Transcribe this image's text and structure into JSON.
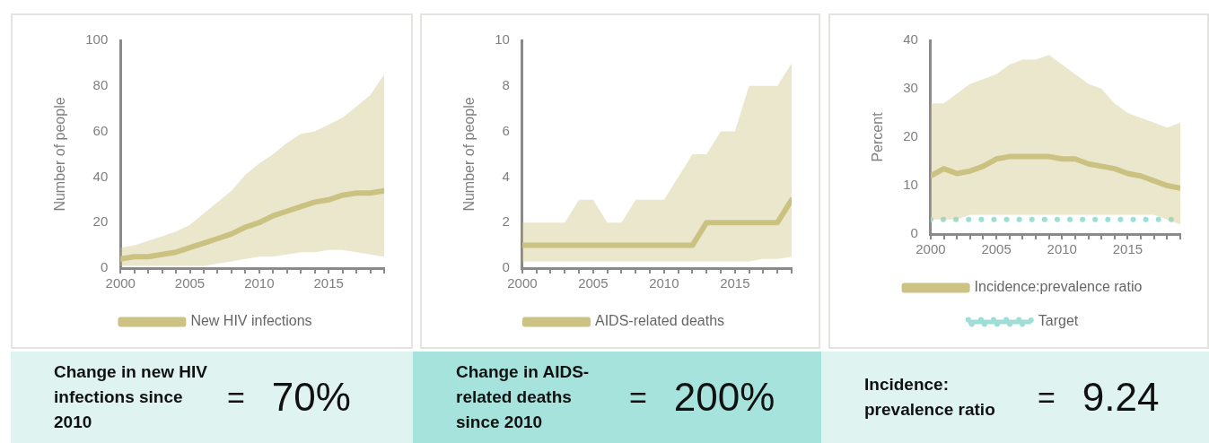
{
  "chart_data": [
    {
      "type": "line",
      "ylabel": "Number of people",
      "x": [
        2000,
        2001,
        2002,
        2003,
        2004,
        2005,
        2006,
        2007,
        2008,
        2009,
        2010,
        2011,
        2012,
        2013,
        2014,
        2015,
        2016,
        2017,
        2018,
        2019
      ],
      "xlim": [
        2000,
        2019
      ],
      "xticks": [
        2000,
        {
          "value": 2001,
          "label": null
        },
        {
          "value": 2002,
          "label": null
        },
        {
          "value": 2003,
          "label": null
        },
        {
          "value": 2004,
          "label": null
        },
        2005,
        {
          "value": 2006,
          "label": null
        },
        {
          "value": 2007,
          "label": null
        },
        {
          "value": 2008,
          "label": null
        },
        {
          "value": 2009,
          "label": null
        },
        2010,
        {
          "value": 2011,
          "label": null
        },
        {
          "value": 2012,
          "label": null
        },
        {
          "value": 2013,
          "label": null
        },
        {
          "value": 2014,
          "label": null
        },
        2015,
        {
          "value": 2016,
          "label": null
        },
        {
          "value": 2017,
          "label": null
        },
        {
          "value": 2018,
          "label": null
        },
        {
          "value": 2019,
          "label": null
        }
      ],
      "ylim": [
        0,
        100
      ],
      "yticks": [
        0,
        20,
        40,
        60,
        80,
        100
      ],
      "grid": false,
      "legend": "bottom",
      "marker": "none",
      "line_style": "solid",
      "series": [
        {
          "name": "New HIV infections",
          "color": "#cbc283",
          "values": [
            4,
            5,
            5,
            6,
            7,
            9,
            11,
            13,
            15,
            18,
            20,
            23,
            25,
            27,
            29,
            30,
            32,
            33,
            33,
            34
          ],
          "lower": [
            1,
            1,
            1,
            1,
            1,
            1,
            1,
            2,
            3,
            4,
            5,
            5,
            6,
            7,
            7,
            8,
            8,
            7,
            6,
            5
          ],
          "upper": [
            9,
            10,
            12,
            14,
            16,
            19,
            24,
            29,
            34,
            41,
            46,
            50,
            55,
            59,
            60,
            63,
            66,
            71,
            76,
            85
          ]
        }
      ]
    },
    {
      "type": "line",
      "ylabel": "Number of people",
      "x": [
        2000,
        2001,
        2002,
        2003,
        2004,
        2005,
        2006,
        2007,
        2008,
        2009,
        2010,
        2011,
        2012,
        2013,
        2014,
        2015,
        2016,
        2017,
        2018,
        2019
      ],
      "xlim": [
        2000,
        2019
      ],
      "xticks": [
        2000,
        {
          "value": 2001,
          "label": null
        },
        {
          "value": 2002,
          "label": null
        },
        {
          "value": 2003,
          "label": null
        },
        {
          "value": 2004,
          "label": null
        },
        2005,
        {
          "value": 2006,
          "label": null
        },
        {
          "value": 2007,
          "label": null
        },
        {
          "value": 2008,
          "label": null
        },
        {
          "value": 2009,
          "label": null
        },
        2010,
        {
          "value": 2011,
          "label": null
        },
        {
          "value": 2012,
          "label": null
        },
        {
          "value": 2013,
          "label": null
        },
        {
          "value": 2014,
          "label": null
        },
        2015,
        {
          "value": 2016,
          "label": null
        },
        {
          "value": 2017,
          "label": null
        },
        {
          "value": 2018,
          "label": null
        },
        {
          "value": 2019,
          "label": null
        }
      ],
      "ylim": [
        0,
        10
      ],
      "yticks": [
        0,
        2,
        4,
        6,
        8,
        10
      ],
      "grid": false,
      "legend": "bottom",
      "marker": "none",
      "line_style": "solid",
      "series": [
        {
          "name": "AIDS-related deaths",
          "color": "#cbc283",
          "values": [
            1,
            1,
            1,
            1,
            1,
            1,
            1,
            1,
            1,
            1,
            1,
            1,
            1,
            2,
            2,
            2,
            2,
            2,
            2,
            3
          ],
          "lower": [
            0.3,
            0.3,
            0.3,
            0.3,
            0.3,
            0.3,
            0.3,
            0.3,
            0.3,
            0.3,
            0.3,
            0.3,
            0.3,
            0.3,
            0.3,
            0.3,
            0.3,
            0.4,
            0.4,
            0.5
          ],
          "upper": [
            2,
            2,
            2,
            2,
            3,
            3,
            2,
            2,
            3,
            3,
            3,
            4,
            5,
            5,
            6,
            6,
            8,
            8,
            8,
            9
          ]
        }
      ]
    },
    {
      "type": "line",
      "ylabel": "Percent",
      "x": [
        2000,
        2001,
        2002,
        2003,
        2004,
        2005,
        2006,
        2007,
        2008,
        2009,
        2010,
        2011,
        2012,
        2013,
        2014,
        2015,
        2016,
        2017,
        2018,
        2019
      ],
      "xlim": [
        2000,
        2019
      ],
      "xticks": [
        2000,
        {
          "value": 2001,
          "label": null
        },
        {
          "value": 2002,
          "label": null
        },
        {
          "value": 2003,
          "label": null
        },
        {
          "value": 2004,
          "label": null
        },
        2005,
        {
          "value": 2006,
          "label": null
        },
        {
          "value": 2007,
          "label": null
        },
        {
          "value": 2008,
          "label": null
        },
        {
          "value": 2009,
          "label": null
        },
        2010,
        {
          "value": 2011,
          "label": null
        },
        {
          "value": 2012,
          "label": null
        },
        {
          "value": 2013,
          "label": null
        },
        {
          "value": 2014,
          "label": null
        },
        2015,
        {
          "value": 2016,
          "label": null
        },
        {
          "value": 2017,
          "label": null
        },
        {
          "value": 2018,
          "label": null
        },
        {
          "value": 2019,
          "label": null
        }
      ],
      "ylim": [
        0,
        40
      ],
      "yticks": [
        0,
        10,
        20,
        30,
        40
      ],
      "grid": false,
      "legend": "bottom",
      "marker": "none",
      "line_style": "solid",
      "series": [
        {
          "name": "Incidence:prevalence ratio",
          "color": "#cbc283",
          "values": [
            12,
            13.5,
            12.5,
            13,
            14,
            15.5,
            16,
            16,
            16,
            16,
            15.5,
            15.5,
            14.5,
            14,
            13.5,
            12.5,
            12,
            11,
            10,
            9.5
          ],
          "lower": [
            3,
            3,
            3,
            4,
            4,
            4,
            4,
            4,
            4,
            4,
            4,
            4,
            4,
            4,
            4,
            4,
            4,
            4,
            3,
            2
          ],
          "upper": [
            27,
            27,
            29,
            31,
            32,
            33,
            35,
            36,
            36,
            37,
            35,
            33,
            31,
            30,
            27,
            25,
            24,
            23,
            22,
            23
          ]
        },
        {
          "name": "Target",
          "color": "#9fded6",
          "values": [
            3,
            3,
            3,
            3,
            3,
            3,
            3,
            3,
            3,
            3,
            3,
            3,
            3,
            3,
            3,
            3,
            3,
            3,
            3,
            3
          ],
          "marker": "none",
          "line_style": "dotted"
        }
      ]
    },
    {
      "type": "other",
      "title": "Change in new HIV infections since 2010",
      "annotations": [
        "=",
        "70%"
      ]
    },
    {
      "type": "other",
      "title": "Change in AIDS-related deaths since 2010",
      "annotations": [
        "=",
        "200%"
      ]
    },
    {
      "type": "other",
      "title": "Incidence: prevalence ratio",
      "annotations": [
        "=",
        "9.24"
      ]
    }
  ]
}
